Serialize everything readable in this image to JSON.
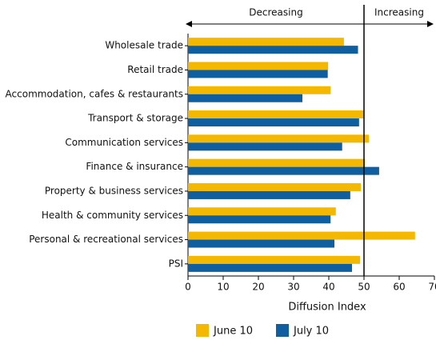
{
  "chart_data": {
    "type": "bar",
    "orientation": "horizontal",
    "annotations": [
      "Decreasing",
      "Increasing"
    ],
    "reference_line": 50,
    "xlabel": "Diffusion Index",
    "categories": [
      "Wholesale trade",
      "Retail trade",
      "Accommodation, cafes & restaurants",
      "Transport & storage",
      "Communication services",
      "Finance & insurance",
      "Property & business services",
      "Health & community services",
      "Personal & recreational services",
      "PSI"
    ],
    "series": [
      {
        "name": "June 10",
        "color": "#f5b800",
        "values": [
          44.3,
          39.8,
          40.5,
          50,
          51.4,
          50.3,
          49.1,
          42,
          64.5,
          48.9
        ]
      },
      {
        "name": "July 10",
        "color": "#0f5fa0",
        "values": [
          48.3,
          39.7,
          32.5,
          48.6,
          43.8,
          54.3,
          46.1,
          40.5,
          41.6,
          46.6
        ]
      }
    ],
    "xlim": [
      0,
      70
    ],
    "xticks": [
      0,
      10,
      20,
      30,
      40,
      50,
      60,
      70
    ]
  }
}
